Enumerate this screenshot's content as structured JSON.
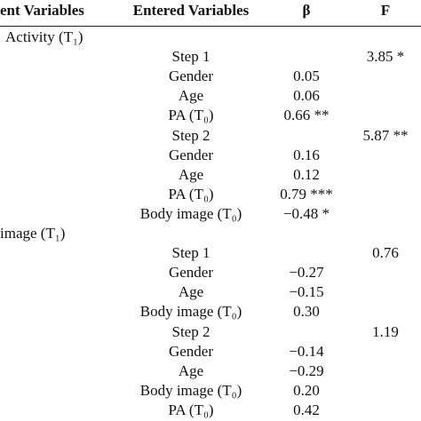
{
  "table": {
    "header": [
      "ent Variables",
      "Entered Variables",
      "β",
      "F"
    ],
    "rows": [
      {
        "dependent": "Activity (T₁)"
      },
      {
        "entered": "Step 1",
        "f": "3.85 *"
      },
      {
        "entered": "Gender",
        "beta": "0.05"
      },
      {
        "entered": "Age",
        "beta": "0.06"
      },
      {
        "entered": "PA (T₀)",
        "beta": "0.66 **"
      },
      {
        "entered": "Step 2",
        "f": "5.87 **"
      },
      {
        "entered": "Gender",
        "beta": "0.16"
      },
      {
        "entered": "Age",
        "beta": "0.12"
      },
      {
        "entered": "PA (T₀)",
        "beta": "0.79 ***"
      },
      {
        "entered": "Body image (T₀)",
        "beta": "−0.48 *"
      },
      {
        "dependent": "image (T₁)"
      },
      {
        "entered": "Step 1",
        "f": "0.76"
      },
      {
        "entered": "Gender",
        "beta": "−0.27"
      },
      {
        "entered": "Age",
        "beta": "−0.15"
      },
      {
        "entered": "Body image (T₀)",
        "beta": "0.30"
      },
      {
        "entered": "Step 2",
        "f": "1.19"
      },
      {
        "entered": "Gender",
        "beta": "−0.14"
      },
      {
        "entered": "Age",
        "beta": "−0.29"
      },
      {
        "entered": "Body image (T₀)",
        "beta": "0.20"
      },
      {
        "entered": "PA (T₀)",
        "beta": "0.42"
      }
    ]
  }
}
